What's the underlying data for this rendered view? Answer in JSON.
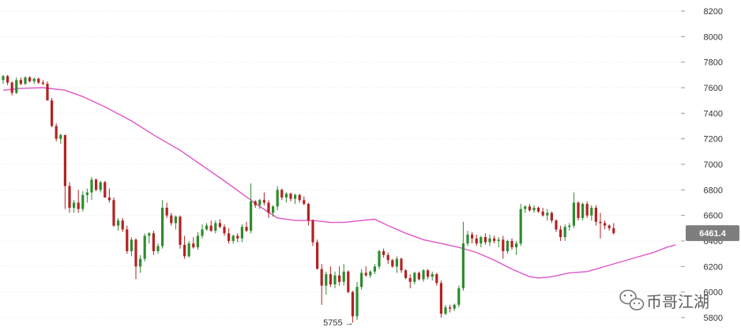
{
  "chart_data": {
    "type": "candlestick",
    "title": "",
    "xlabel": "",
    "ylabel": "",
    "ylim": [
      5780,
      8240
    ],
    "y_ticks": [
      5800,
      6000,
      6200,
      6400,
      6600,
      6800,
      7000,
      7200,
      7400,
      7600,
      7800,
      8000,
      8200
    ],
    "grid": "horizontal dotted",
    "colors": {
      "up": "#2e8b2e",
      "down": "#b22222",
      "ma": "#e055c8",
      "price_tag": "#7e7e7e"
    },
    "last_price_label": "6461.4",
    "low_marker": {
      "text": "5755 →",
      "value": 5755
    },
    "candles_ohlc": [
      [
        7660,
        7700,
        7630,
        7690
      ],
      [
        7690,
        7700,
        7620,
        7640
      ],
      [
        7640,
        7650,
        7540,
        7560
      ],
      [
        7560,
        7680,
        7550,
        7660
      ],
      [
        7660,
        7680,
        7620,
        7630
      ],
      [
        7630,
        7690,
        7620,
        7680
      ],
      [
        7680,
        7690,
        7640,
        7650
      ],
      [
        7650,
        7680,
        7630,
        7670
      ],
      [
        7670,
        7680,
        7630,
        7640
      ],
      [
        7640,
        7660,
        7620,
        7630
      ],
      [
        7630,
        7650,
        7500,
        7500
      ],
      [
        7500,
        7520,
        7290,
        7300
      ],
      [
        7300,
        7320,
        7180,
        7200
      ],
      [
        7200,
        7240,
        7160,
        7230
      ],
      [
        7230,
        7230,
        6650,
        6830
      ],
      [
        6830,
        6860,
        6620,
        6660
      ],
      [
        6660,
        6720,
        6620,
        6700
      ],
      [
        6700,
        6800,
        6620,
        6650
      ],
      [
        6650,
        6790,
        6630,
        6760
      ],
      [
        6760,
        6810,
        6700,
        6780
      ],
      [
        6780,
        6900,
        6720,
        6880
      ],
      [
        6880,
        6890,
        6790,
        6800
      ],
      [
        6800,
        6870,
        6780,
        6860
      ],
      [
        6860,
        6870,
        6740,
        6740
      ],
      [
        6740,
        6810,
        6700,
        6720
      ],
      [
        6720,
        6740,
        6510,
        6520
      ],
      [
        6520,
        6580,
        6480,
        6560
      ],
      [
        6560,
        6580,
        6470,
        6490
      ],
      [
        6490,
        6520,
        6300,
        6320
      ],
      [
        6320,
        6430,
        6280,
        6410
      ],
      [
        6410,
        6420,
        6100,
        6200
      ],
      [
        6200,
        6290,
        6150,
        6260
      ],
      [
        6260,
        6460,
        6240,
        6440
      ],
      [
        6440,
        6470,
        6380,
        6460
      ],
      [
        6460,
        6480,
        6290,
        6320
      ],
      [
        6320,
        6380,
        6300,
        6360
      ],
      [
        6360,
        6720,
        6340,
        6660
      ],
      [
        6660,
        6700,
        6580,
        6600
      ],
      [
        6600,
        6620,
        6520,
        6540
      ],
      [
        6540,
        6600,
        6490,
        6590
      ],
      [
        6590,
        6600,
        6340,
        6370
      ],
      [
        6370,
        6440,
        6260,
        6280
      ],
      [
        6280,
        6400,
        6270,
        6380
      ],
      [
        6380,
        6430,
        6340,
        6350
      ],
      [
        6350,
        6470,
        6330,
        6440
      ],
      [
        6440,
        6530,
        6420,
        6490
      ],
      [
        6490,
        6540,
        6480,
        6520
      ],
      [
        6520,
        6560,
        6470,
        6480
      ],
      [
        6480,
        6560,
        6460,
        6540
      ],
      [
        6540,
        6570,
        6500,
        6510
      ],
      [
        6510,
        6530,
        6440,
        6460
      ],
      [
        6460,
        6500,
        6380,
        6400
      ],
      [
        6400,
        6450,
        6380,
        6440
      ],
      [
        6440,
        6460,
        6390,
        6420
      ],
      [
        6420,
        6530,
        6390,
        6510
      ],
      [
        6510,
        6550,
        6470,
        6480
      ],
      [
        6480,
        6850,
        6460,
        6710
      ],
      [
        6710,
        6720,
        6660,
        6680
      ],
      [
        6680,
        6730,
        6650,
        6720
      ],
      [
        6720,
        6780,
        6680,
        6700
      ],
      [
        6700,
        6720,
        6580,
        6620
      ],
      [
        6620,
        6680,
        6590,
        6670
      ],
      [
        6670,
        6830,
        6640,
        6800
      ],
      [
        6800,
        6810,
        6720,
        6740
      ],
      [
        6740,
        6780,
        6700,
        6770
      ],
      [
        6770,
        6780,
        6710,
        6730
      ],
      [
        6730,
        6770,
        6690,
        6760
      ],
      [
        6760,
        6770,
        6700,
        6720
      ],
      [
        6720,
        6750,
        6680,
        6690
      ],
      [
        6690,
        6700,
        6520,
        6560
      ],
      [
        6560,
        6570,
        6360,
        6390
      ],
      [
        6390,
        6410,
        6180,
        6180
      ],
      [
        6180,
        6220,
        5900,
        6050
      ],
      [
        6050,
        6160,
        5980,
        6140
      ],
      [
        6140,
        6200,
        6040,
        6060
      ],
      [
        6060,
        6160,
        6030,
        6130
      ],
      [
        6130,
        6200,
        6050,
        6080
      ],
      [
        6080,
        6220,
        6050,
        6160
      ],
      [
        6160,
        6170,
        5990,
        6000
      ],
      [
        6000,
        6010,
        5760,
        5810
      ],
      [
        5810,
        6080,
        5780,
        6040
      ],
      [
        6040,
        6180,
        6020,
        6150
      ],
      [
        6150,
        6200,
        6120,
        6130
      ],
      [
        6130,
        6170,
        6110,
        6160
      ],
      [
        6160,
        6220,
        6140,
        6200
      ],
      [
        6200,
        6330,
        6180,
        6320
      ],
      [
        6320,
        6340,
        6270,
        6290
      ],
      [
        6290,
        6310,
        6220,
        6250
      ],
      [
        6250,
        6260,
        6190,
        6200
      ],
      [
        6200,
        6280,
        6150,
        6260
      ],
      [
        6260,
        6270,
        6150,
        6170
      ],
      [
        6170,
        6180,
        6100,
        6110
      ],
      [
        6110,
        6140,
        6030,
        6080
      ],
      [
        6080,
        6160,
        6060,
        6150
      ],
      [
        6150,
        6160,
        6090,
        6100
      ],
      [
        6100,
        6180,
        6080,
        6170
      ],
      [
        6170,
        6180,
        6100,
        6120
      ],
      [
        6120,
        6160,
        6090,
        6140
      ],
      [
        6140,
        6150,
        6050,
        6070
      ],
      [
        6070,
        6090,
        5800,
        5830
      ],
      [
        5830,
        5900,
        5820,
        5880
      ],
      [
        5880,
        5900,
        5840,
        5870
      ],
      [
        5870,
        5910,
        5850,
        5900
      ],
      [
        5900,
        6050,
        5880,
        6030
      ],
      [
        6030,
        6550,
        6010,
        6380
      ],
      [
        6380,
        6480,
        6360,
        6450
      ],
      [
        6450,
        6470,
        6380,
        6420
      ],
      [
        6420,
        6450,
        6360,
        6380
      ],
      [
        6380,
        6440,
        6350,
        6430
      ],
      [
        6430,
        6460,
        6370,
        6390
      ],
      [
        6390,
        6450,
        6360,
        6420
      ],
      [
        6420,
        6440,
        6380,
        6400
      ],
      [
        6400,
        6430,
        6350,
        6410
      ],
      [
        6410,
        6440,
        6260,
        6320
      ],
      [
        6320,
        6410,
        6300,
        6400
      ],
      [
        6400,
        6420,
        6330,
        6350
      ],
      [
        6350,
        6400,
        6290,
        6380
      ],
      [
        6380,
        6690,
        6360,
        6650
      ],
      [
        6650,
        6680,
        6620,
        6670
      ],
      [
        6670,
        6690,
        6630,
        6640
      ],
      [
        6640,
        6680,
        6620,
        6660
      ],
      [
        6660,
        6670,
        6620,
        6630
      ],
      [
        6630,
        6660,
        6590,
        6600
      ],
      [
        6600,
        6650,
        6560,
        6620
      ],
      [
        6620,
        6630,
        6540,
        6560
      ],
      [
        6560,
        6570,
        6470,
        6490
      ],
      [
        6490,
        6520,
        6400,
        6430
      ],
      [
        6430,
        6530,
        6400,
        6510
      ],
      [
        6510,
        6540,
        6480,
        6520
      ],
      [
        6520,
        6780,
        6500,
        6700
      ],
      [
        6700,
        6710,
        6560,
        6580
      ],
      [
        6580,
        6700,
        6560,
        6690
      ],
      [
        6690,
        6710,
        6580,
        6600
      ],
      [
        6600,
        6680,
        6560,
        6660
      ],
      [
        6660,
        6680,
        6520,
        6550
      ],
      [
        6550,
        6620,
        6420,
        6540
      ],
      [
        6540,
        6560,
        6490,
        6520
      ],
      [
        6520,
        6530,
        6480,
        6500
      ],
      [
        6500,
        6540,
        6450,
        6461.4
      ]
    ],
    "ma_line": [
      [
        0,
        7580
      ],
      [
        4,
        7595
      ],
      [
        9,
        7600
      ],
      [
        14,
        7580
      ],
      [
        18,
        7530
      ],
      [
        23,
        7450
      ],
      [
        29,
        7340
      ],
      [
        34,
        7230
      ],
      [
        40,
        7110
      ],
      [
        45,
        6990
      ],
      [
        50,
        6870
      ],
      [
        54,
        6770
      ],
      [
        58,
        6670
      ],
      [
        62,
        6580
      ],
      [
        66,
        6560
      ],
      [
        70,
        6560
      ],
      [
        74,
        6545
      ],
      [
        77,
        6545
      ],
      [
        81,
        6560
      ],
      [
        84,
        6570
      ],
      [
        87,
        6520
      ],
      [
        91,
        6460
      ],
      [
        95,
        6410
      ],
      [
        99,
        6380
      ],
      [
        103,
        6350
      ],
      [
        107,
        6310
      ],
      [
        111,
        6250
      ],
      [
        115,
        6180
      ],
      [
        119,
        6120
      ],
      [
        121,
        6110
      ],
      [
        124,
        6120
      ],
      [
        128,
        6150
      ],
      [
        132,
        6160
      ],
      [
        135,
        6190
      ],
      [
        139,
        6230
      ],
      [
        143,
        6270
      ],
      [
        147,
        6310
      ],
      [
        150,
        6350
      ],
      [
        152,
        6370
      ]
    ]
  }
}
